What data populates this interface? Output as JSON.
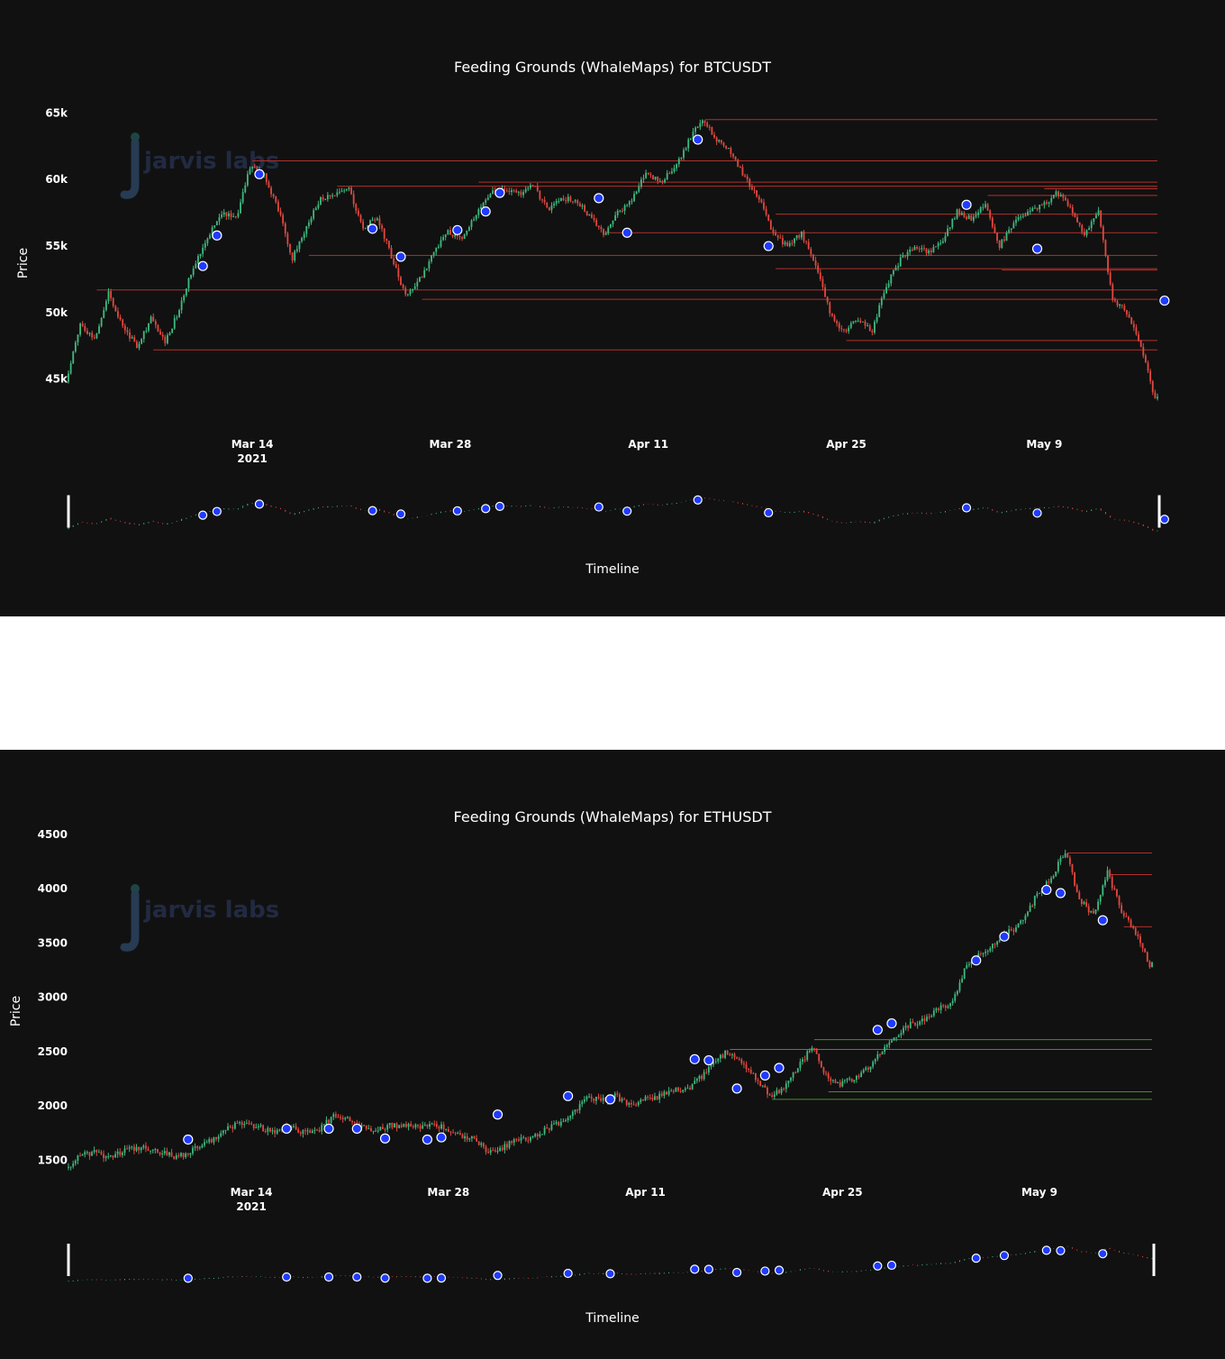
{
  "chart_data": [
    {
      "type": "candlestick",
      "title": "Feeding Grounds (WhaleMaps) for BTCUSDT",
      "watermark": "jarvis labs",
      "xlabel": "Timeline",
      "ylabel": "Price",
      "x_ticks": [
        "Mar 14",
        "Mar 28",
        "Apr 11",
        "Apr 25",
        "May 9"
      ],
      "x_tick_sub": "2021",
      "x_range": [
        "2021-03-01",
        "2021-05-17"
      ],
      "y_ticks": [
        "45k",
        "50k",
        "55k",
        "60k",
        "65k"
      ],
      "y_tick_values": [
        45000,
        50000,
        55000,
        60000,
        65000
      ],
      "ylim": [
        42000,
        65500
      ],
      "colors": {
        "up": "#3fb97f",
        "down": "#e0483f",
        "level": "#b0302a",
        "marker": "#1f3bff"
      },
      "price_path": [
        [
          "2021-03-01",
          44800
        ],
        [
          "2021-03-02",
          49200
        ],
        [
          "2021-03-03",
          48000
        ],
        [
          "2021-03-04",
          51500
        ],
        [
          "2021-03-05",
          49000
        ],
        [
          "2021-03-06",
          47500
        ],
        [
          "2021-03-07",
          49500
        ],
        [
          "2021-03-08",
          47800
        ],
        [
          "2021-03-09",
          50200
        ],
        [
          "2021-03-10",
          53500
        ],
        [
          "2021-03-11",
          55700
        ],
        [
          "2021-03-12",
          57500
        ],
        [
          "2021-03-13",
          57000
        ],
        [
          "2021-03-14",
          61000
        ],
        [
          "2021-03-15",
          60400
        ],
        [
          "2021-03-16",
          57800
        ],
        [
          "2021-03-17",
          54000
        ],
        [
          "2021-03-18",
          56500
        ],
        [
          "2021-03-19",
          58500
        ],
        [
          "2021-03-20",
          58800
        ],
        [
          "2021-03-21",
          59300
        ],
        [
          "2021-03-22",
          56300
        ],
        [
          "2021-03-23",
          57200
        ],
        [
          "2021-03-24",
          54200
        ],
        [
          "2021-03-25",
          51200
        ],
        [
          "2021-03-26",
          52500
        ],
        [
          "2021-03-27",
          54500
        ],
        [
          "2021-03-28",
          56100
        ],
        [
          "2021-03-29",
          55500
        ],
        [
          "2021-03-30",
          57500
        ],
        [
          "2021-03-31",
          59000
        ],
        [
          "2021-04-01",
          59300
        ],
        [
          "2021-04-02",
          58900
        ],
        [
          "2021-04-03",
          59600
        ],
        [
          "2021-04-04",
          57800
        ],
        [
          "2021-04-05",
          58400
        ],
        [
          "2021-04-06",
          58600
        ],
        [
          "2021-04-07",
          57200
        ],
        [
          "2021-04-08",
          55900
        ],
        [
          "2021-04-09",
          57500
        ],
        [
          "2021-04-10",
          58500
        ],
        [
          "2021-04-11",
          60500
        ],
        [
          "2021-04-12",
          59800
        ],
        [
          "2021-04-13",
          60800
        ],
        [
          "2021-04-14",
          62900
        ],
        [
          "2021-04-15",
          64500
        ],
        [
          "2021-04-16",
          63000
        ],
        [
          "2021-04-17",
          62000
        ],
        [
          "2021-04-18",
          60200
        ],
        [
          "2021-04-19",
          58500
        ],
        [
          "2021-04-20",
          56000
        ],
        [
          "2021-04-21",
          55000
        ],
        [
          "2021-04-22",
          56000
        ],
        [
          "2021-04-23",
          53500
        ],
        [
          "2021-04-24",
          50000
        ],
        [
          "2021-04-25",
          48500
        ],
        [
          "2021-04-26",
          49500
        ],
        [
          "2021-04-27",
          48700
        ],
        [
          "2021-04-28",
          52000
        ],
        [
          "2021-04-29",
          54000
        ],
        [
          "2021-04-30",
          55000
        ],
        [
          "2021-05-01",
          54500
        ],
        [
          "2021-05-02",
          55500
        ],
        [
          "2021-05-03",
          57600
        ],
        [
          "2021-05-04",
          57000
        ],
        [
          "2021-05-05",
          58300
        ],
        [
          "2021-05-06",
          55000
        ],
        [
          "2021-05-07",
          56800
        ],
        [
          "2021-05-08",
          57500
        ],
        [
          "2021-05-09",
          58000
        ],
        [
          "2021-05-10",
          59000
        ],
        [
          "2021-05-11",
          58000
        ],
        [
          "2021-05-12",
          55800
        ],
        [
          "2021-05-13",
          57500
        ],
        [
          "2021-05-14",
          51000
        ],
        [
          "2021-05-15",
          50000
        ],
        [
          "2021-05-16",
          47500
        ],
        [
          "2021-05-17",
          43500
        ]
      ],
      "levels": [
        {
          "price": 64500,
          "start": "2021-04-15"
        },
        {
          "price": 61400,
          "start": "2021-03-14"
        },
        {
          "price": 59800,
          "start": "2021-03-30"
        },
        {
          "price": 59500,
          "start": "2021-03-20"
        },
        {
          "price": 59300,
          "start": "2021-05-09"
        },
        {
          "price": 58800,
          "start": "2021-05-05"
        },
        {
          "price": 57400,
          "start": "2021-04-20"
        },
        {
          "price": 56000,
          "start": "2021-04-08"
        },
        {
          "price": 54300,
          "start": "2021-03-18"
        },
        {
          "price": 53300,
          "start": "2021-04-20"
        },
        {
          "price": 53200,
          "start": "2021-05-06"
        },
        {
          "price": 51700,
          "start": "2021-03-03"
        },
        {
          "price": 51000,
          "start": "2021-03-26"
        },
        {
          "price": 47900,
          "start": "2021-04-25"
        },
        {
          "price": 47200,
          "start": "2021-03-07"
        }
      ],
      "markers": [
        [
          "2021-03-10",
          53500
        ],
        [
          "2021-03-11",
          55800
        ],
        [
          "2021-03-14",
          60400
        ],
        [
          "2021-03-22",
          56300
        ],
        [
          "2021-03-24",
          54200
        ],
        [
          "2021-03-28",
          56200
        ],
        [
          "2021-03-30",
          57600
        ],
        [
          "2021-03-31",
          59000
        ],
        [
          "2021-04-07",
          58600
        ],
        [
          "2021-04-09",
          56000
        ],
        [
          "2021-04-14",
          63000
        ],
        [
          "2021-04-19",
          55000
        ],
        [
          "2021-05-03",
          58100
        ],
        [
          "2021-05-08",
          54800
        ],
        [
          "2021-05-17",
          50900
        ]
      ]
    },
    {
      "type": "candlestick",
      "title": "Feeding Grounds (WhaleMaps) for ETHUSDT",
      "watermark": "jarvis labs",
      "xlabel": "Timeline",
      "ylabel": "Price",
      "x_ticks": [
        "Mar 14",
        "Mar 28",
        "Apr 11",
        "Apr 25",
        "May 9"
      ],
      "x_tick_sub": "2021",
      "x_range": [
        "2021-03-01",
        "2021-05-17"
      ],
      "y_ticks": [
        "1500",
        "2000",
        "2500",
        "3000",
        "3500",
        "4000",
        "4500"
      ],
      "y_tick_values": [
        1500,
        2000,
        2500,
        3000,
        3500,
        4000,
        4500
      ],
      "ylim": [
        1420,
        4450
      ],
      "colors": {
        "up": "#3fb97f",
        "down": "#e0483f",
        "level": "#b0302a",
        "level_support": "#4c8a35",
        "marker": "#1f3bff"
      },
      "price_path": [
        [
          "2021-03-01",
          1430
        ],
        [
          "2021-03-02",
          1540
        ],
        [
          "2021-03-03",
          1570
        ],
        [
          "2021-03-04",
          1530
        ],
        [
          "2021-03-05",
          1580
        ],
        [
          "2021-03-06",
          1620
        ],
        [
          "2021-03-07",
          1610
        ],
        [
          "2021-03-08",
          1560
        ],
        [
          "2021-03-09",
          1530
        ],
        [
          "2021-03-10",
          1600
        ],
        [
          "2021-03-11",
          1660
        ],
        [
          "2021-03-12",
          1750
        ],
        [
          "2021-03-13",
          1830
        ],
        [
          "2021-03-14",
          1820
        ],
        [
          "2021-03-15",
          1790
        ],
        [
          "2021-03-16",
          1770
        ],
        [
          "2021-03-17",
          1800
        ],
        [
          "2021-03-18",
          1750
        ],
        [
          "2021-03-19",
          1780
        ],
        [
          "2021-03-20",
          1910
        ],
        [
          "2021-03-21",
          1870
        ],
        [
          "2021-03-22",
          1800
        ],
        [
          "2021-03-23",
          1790
        ],
        [
          "2021-03-24",
          1820
        ],
        [
          "2021-03-25",
          1820
        ],
        [
          "2021-03-26",
          1800
        ],
        [
          "2021-03-27",
          1840
        ],
        [
          "2021-03-28",
          1790
        ],
        [
          "2021-03-29",
          1720
        ],
        [
          "2021-03-30",
          1690
        ],
        [
          "2021-03-31",
          1580
        ],
        [
          "2021-04-01",
          1620
        ],
        [
          "2021-04-02",
          1680
        ],
        [
          "2021-04-03",
          1710
        ],
        [
          "2021-04-04",
          1780
        ],
        [
          "2021-04-05",
          1840
        ],
        [
          "2021-04-06",
          1920
        ],
        [
          "2021-04-07",
          2080
        ],
        [
          "2021-04-08",
          2050
        ],
        [
          "2021-04-09",
          2100
        ],
        [
          "2021-04-10",
          2000
        ],
        [
          "2021-04-11",
          2070
        ],
        [
          "2021-04-12",
          2080
        ],
        [
          "2021-04-13",
          2150
        ],
        [
          "2021-04-14",
          2140
        ],
        [
          "2021-04-15",
          2250
        ],
        [
          "2021-04-16",
          2400
        ],
        [
          "2021-04-17",
          2500
        ],
        [
          "2021-04-18",
          2420
        ],
        [
          "2021-04-19",
          2250
        ],
        [
          "2021-04-20",
          2100
        ],
        [
          "2021-04-21",
          2150
        ],
        [
          "2021-04-22",
          2350
        ],
        [
          "2021-04-23",
          2550
        ],
        [
          "2021-04-24",
          2280
        ],
        [
          "2021-04-25",
          2200
        ],
        [
          "2021-04-26",
          2260
        ],
        [
          "2021-04-27",
          2350
        ],
        [
          "2021-04-28",
          2500
        ],
        [
          "2021-04-29",
          2650
        ],
        [
          "2021-04-30",
          2750
        ],
        [
          "2021-05-01",
          2800
        ],
        [
          "2021-05-02",
          2900
        ],
        [
          "2021-05-03",
          2950
        ],
        [
          "2021-05-04",
          3300
        ],
        [
          "2021-05-05",
          3400
        ],
        [
          "2021-05-06",
          3500
        ],
        [
          "2021-05-07",
          3600
        ],
        [
          "2021-05-08",
          3700
        ],
        [
          "2021-05-09",
          3950
        ],
        [
          "2021-05-10",
          4100
        ],
        [
          "2021-05-11",
          4350
        ],
        [
          "2021-05-12",
          3900
        ],
        [
          "2021-05-13",
          3750
        ],
        [
          "2021-05-14",
          4150
        ],
        [
          "2021-05-15",
          3800
        ],
        [
          "2021-05-16",
          3600
        ],
        [
          "2021-05-17",
          3300
        ]
      ],
      "levels": [
        {
          "price": 4330,
          "start": "2021-05-11",
          "kind": "resistance"
        },
        {
          "price": 4130,
          "start": "2021-05-14",
          "kind": "resistance"
        },
        {
          "price": 3650,
          "start": "2021-05-15",
          "kind": "resistance"
        },
        {
          "price": 2610,
          "start": "2021-04-23",
          "kind": "support"
        },
        {
          "price": 2520,
          "start": "2021-04-17",
          "kind": "support"
        },
        {
          "price": 2130,
          "start": "2021-04-24",
          "kind": "support"
        },
        {
          "price": 2060,
          "start": "2021-04-20",
          "kind": "support"
        }
      ],
      "markers": [
        [
          "2021-03-09",
          1690
        ],
        [
          "2021-03-16",
          1790
        ],
        [
          "2021-03-19",
          1790
        ],
        [
          "2021-03-21",
          1790
        ],
        [
          "2021-03-23",
          1700
        ],
        [
          "2021-03-26",
          1690
        ],
        [
          "2021-03-27",
          1710
        ],
        [
          "2021-03-31",
          1920
        ],
        [
          "2021-04-05",
          2090
        ],
        [
          "2021-04-08",
          2060
        ],
        [
          "2021-04-14",
          2430
        ],
        [
          "2021-04-15",
          2420
        ],
        [
          "2021-04-17",
          2160
        ],
        [
          "2021-04-19",
          2280
        ],
        [
          "2021-04-20",
          2350
        ],
        [
          "2021-04-27",
          2700
        ],
        [
          "2021-04-28",
          2760
        ],
        [
          "2021-05-04",
          3340
        ],
        [
          "2021-05-06",
          3560
        ],
        [
          "2021-05-09",
          3990
        ],
        [
          "2021-05-10",
          3960
        ],
        [
          "2021-05-13",
          3710
        ]
      ]
    }
  ]
}
